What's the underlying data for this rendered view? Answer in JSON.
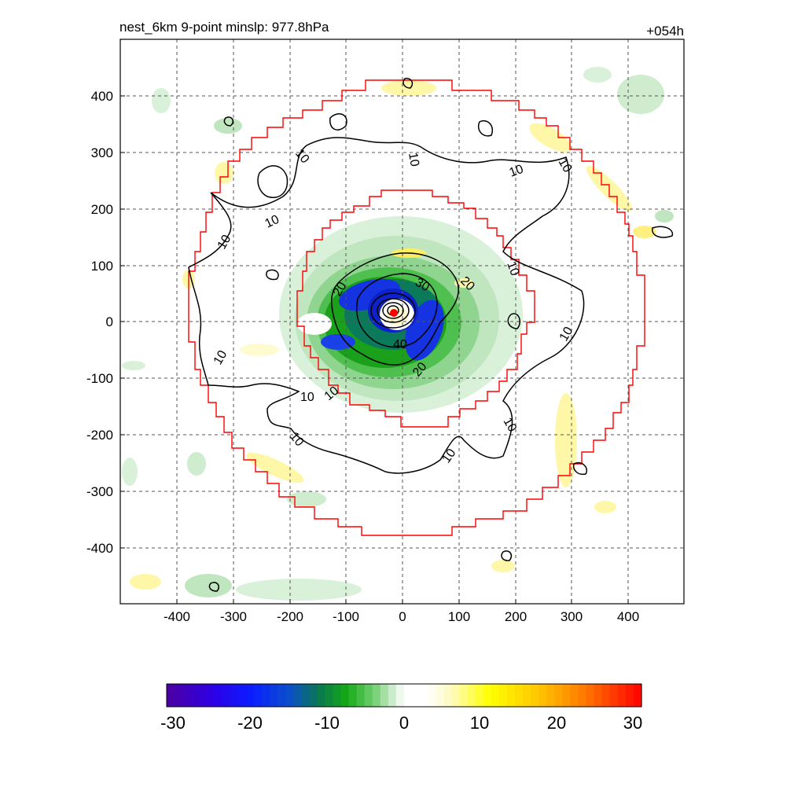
{
  "chart_data": {
    "type": "heatmap",
    "title": "nest_6km  9-point minslp: 977.8hPa",
    "time_label": "+054h",
    "xlim": [
      -500,
      500
    ],
    "ylim": [
      -500,
      500
    ],
    "x_ticks": [
      -400,
      -300,
      -200,
      -100,
      0,
      100,
      200,
      300,
      400
    ],
    "y_ticks": [
      400,
      300,
      200,
      100,
      0,
      -100,
      -200,
      -300,
      -400
    ],
    "grid": true,
    "colorbar": {
      "range": [
        -30,
        30
      ],
      "ticks": [
        -30,
        -20,
        -10,
        0,
        10,
        20,
        30
      ]
    },
    "contour_labels": [
      "10",
      "10",
      "10",
      "10",
      "10",
      "10",
      "10",
      "10",
      "10",
      "10",
      "10",
      "20",
      "20",
      "20",
      "30",
      "40"
    ],
    "center_marker": [
      -15,
      15
    ]
  }
}
